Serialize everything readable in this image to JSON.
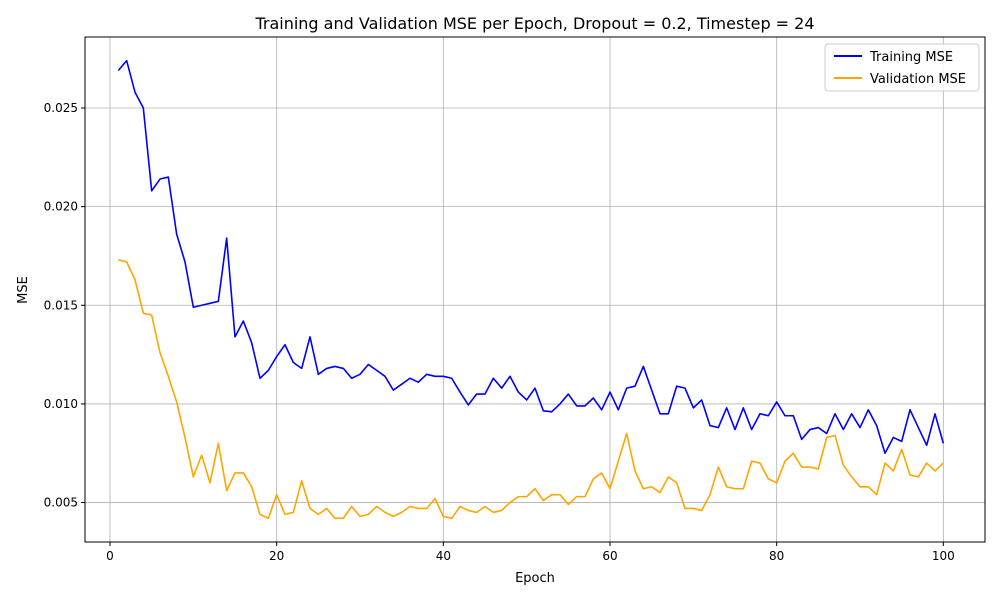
{
  "chart_data": {
    "type": "line",
    "title": "Training and Validation MSE per Epoch, Dropout = 0.2, Timestep = 24",
    "xlabel": "Epoch",
    "ylabel": "MSE",
    "xlim": [
      -3,
      105
    ],
    "ylim": [
      0.003,
      0.0286
    ],
    "xticks": [
      0,
      20,
      40,
      60,
      80,
      100
    ],
    "xtick_labels": [
      "0",
      "20",
      "40",
      "60",
      "80",
      "100"
    ],
    "yticks": [
      0.005,
      0.01,
      0.015,
      0.02,
      0.025
    ],
    "ytick_labels": [
      "0.005",
      "0.010",
      "0.015",
      "0.020",
      "0.025"
    ],
    "grid": true,
    "legend_position": "top-right",
    "x_start": 1,
    "series": [
      {
        "name": "Training MSE",
        "color": "#0000ff",
        "values": [
          0.0269,
          0.0274,
          0.0258,
          0.025,
          0.0208,
          0.0214,
          0.0215,
          0.0186,
          0.0172,
          0.0149,
          0.015,
          0.0151,
          0.0152,
          0.0184,
          0.0134,
          0.0142,
          0.0131,
          0.0113,
          0.0117,
          0.0124,
          0.013,
          0.0121,
          0.0118,
          0.0134,
          0.0115,
          0.0118,
          0.0119,
          0.0118,
          0.0113,
          0.0115,
          0.012,
          0.0117,
          0.0114,
          0.0107,
          0.011,
          0.0113,
          0.0111,
          0.0115,
          0.0114,
          0.0114,
          0.0113,
          0.0106,
          0.00995,
          0.0105,
          0.0105,
          0.0113,
          0.0108,
          0.0114,
          0.0106,
          0.0102,
          0.0108,
          0.00965,
          0.0096,
          0.01,
          0.0105,
          0.0099,
          0.0099,
          0.0103,
          0.0097,
          0.0106,
          0.0097,
          0.0108,
          0.0109,
          0.0119,
          0.0107,
          0.0095,
          0.0095,
          0.0109,
          0.0108,
          0.0098,
          0.0102,
          0.0089,
          0.0088,
          0.0098,
          0.0087,
          0.0098,
          0.0087,
          0.0095,
          0.0094,
          0.0101,
          0.0094,
          0.0094,
          0.0082,
          0.0087,
          0.0088,
          0.0085,
          0.0095,
          0.0087,
          0.0095,
          0.0088,
          0.0097,
          0.0089,
          0.0075,
          0.0083,
          0.0081,
          0.0097,
          0.0088,
          0.0079,
          0.0095,
          0.008
        ]
      },
      {
        "name": "Validation MSE",
        "color": "#ffa500",
        "values": [
          0.0173,
          0.0172,
          0.0163,
          0.0146,
          0.0145,
          0.0126,
          0.0114,
          0.0101,
          0.0083,
          0.0063,
          0.0074,
          0.006,
          0.008,
          0.0056,
          0.0065,
          0.0065,
          0.0058,
          0.0044,
          0.0042,
          0.0054,
          0.0044,
          0.0045,
          0.0061,
          0.0047,
          0.0044,
          0.0047,
          0.0042,
          0.0042,
          0.0048,
          0.0043,
          0.0044,
          0.0048,
          0.0045,
          0.0043,
          0.0045,
          0.0048,
          0.0047,
          0.0047,
          0.0052,
          0.0043,
          0.0042,
          0.0048,
          0.0046,
          0.0045,
          0.0048,
          0.0045,
          0.0046,
          0.005,
          0.0053,
          0.0053,
          0.0057,
          0.0051,
          0.0054,
          0.0054,
          0.0049,
          0.0053,
          0.0053,
          0.0062,
          0.0065,
          0.0057,
          0.0071,
          0.0085,
          0.0066,
          0.0057,
          0.0058,
          0.0055,
          0.0063,
          0.006,
          0.0047,
          0.0047,
          0.0046,
          0.0054,
          0.0068,
          0.0058,
          0.0057,
          0.0057,
          0.0071,
          0.007,
          0.0062,
          0.006,
          0.0071,
          0.0075,
          0.0068,
          0.0068,
          0.0067,
          0.0083,
          0.0084,
          0.0069,
          0.0063,
          0.0058,
          0.0058,
          0.0054,
          0.007,
          0.0066,
          0.0077,
          0.0064,
          0.0063,
          0.007,
          0.0066,
          0.007
        ]
      }
    ]
  }
}
